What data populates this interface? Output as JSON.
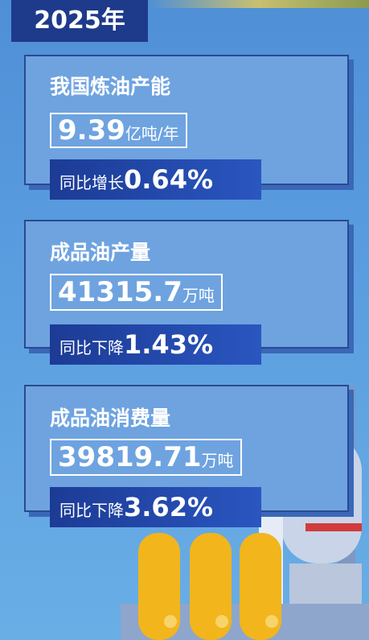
{
  "header": {
    "year": "2025年"
  },
  "cards": [
    {
      "title": "我国炼油产能",
      "value": "9.39",
      "unit": "亿吨/年",
      "change_label": "同比增长",
      "change_value": "0.64%"
    },
    {
      "title": "成品油产量",
      "value": "41315.7",
      "unit": "万吨",
      "change_label": "同比下降",
      "change_value": "1.43%"
    },
    {
      "title": "成品油消费量",
      "value": "39819.71",
      "unit": "万吨",
      "change_label": "同比下降",
      "change_value": "3.62%"
    }
  ]
}
